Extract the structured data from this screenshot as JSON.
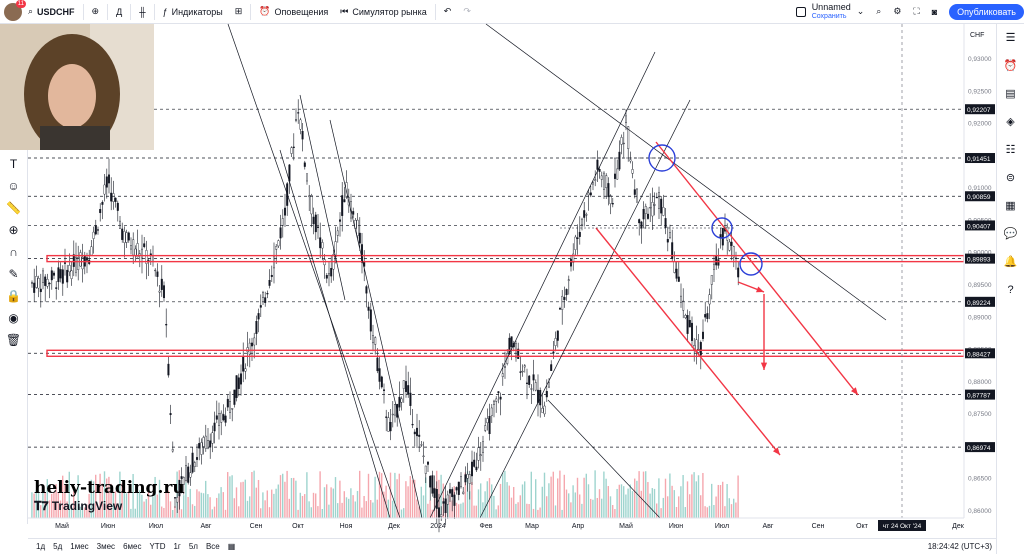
{
  "topbar": {
    "avatar_badge": "11",
    "symbol": "USDCHF",
    "interval": "Д",
    "indicators": "Индикаторы",
    "alerts": "Оповещения",
    "replay": "Симулятор рынка",
    "layout_name": "Unnamed",
    "layout_status": "Сохранить",
    "publish": "Опубликовать"
  },
  "price_axis": {
    "currency": "CHF",
    "ticks": [
      "0,93000",
      "0,92500",
      "0,92000",
      "0,91500",
      "0,91000",
      "0,90500",
      "0,90000",
      "0,89500",
      "0,89000",
      "0,88500",
      "0,88000",
      "0,87500",
      "0,87000",
      "0,86500",
      "0,86000"
    ],
    "labels": [
      {
        "v": "0,92207",
        "color": "#131722"
      },
      {
        "v": "0,91451",
        "color": "#131722"
      },
      {
        "v": "0,90859",
        "color": "#131722"
      },
      {
        "v": "0,90407",
        "color": "#131722"
      },
      {
        "v": "0,89893",
        "color": "#131722"
      },
      {
        "v": "0,89224",
        "color": "#131722"
      },
      {
        "v": "0,88427",
        "color": "#131722"
      },
      {
        "v": "0,87787",
        "color": "#131722"
      },
      {
        "v": "0,86974",
        "color": "#131722"
      }
    ]
  },
  "time_axis": {
    "labels": [
      "Май",
      "Июн",
      "Июл",
      "Авг",
      "Сен",
      "Окт",
      "Ноя",
      "Дек",
      "2024",
      "Фев",
      "Мар",
      "Апр",
      "Май",
      "Июн",
      "Июл",
      "Авг",
      "Сен",
      "Окт",
      "Дек"
    ],
    "cursor_label": "чт 24 Окт '24"
  },
  "bottombar": {
    "ranges": [
      "1д",
      "5д",
      "1мес",
      "3мес",
      "6мес",
      "YTD",
      "1г",
      "5л",
      "Все"
    ],
    "clock": "18:24:42 (UTC+3)"
  },
  "watermark": {
    "site": "heliy-trading.ru",
    "logo": "TradingView"
  },
  "colors": {
    "accent": "#2962ff",
    "drawing_red": "#f23645",
    "circle_blue": "#2b3fd8"
  }
}
